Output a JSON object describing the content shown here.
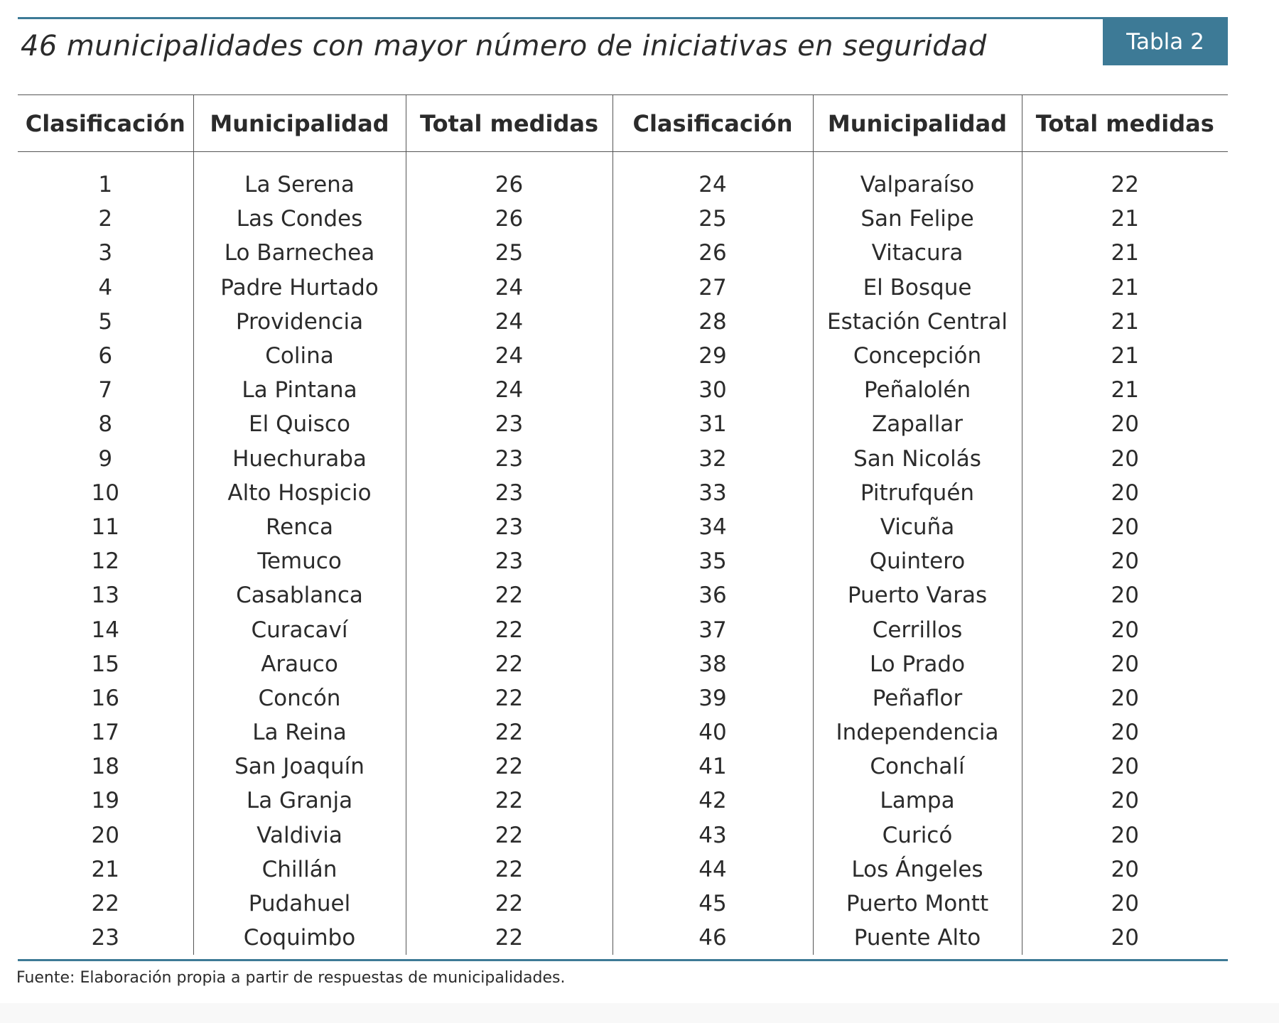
{
  "table": {
    "title": "46 municipalidades con mayor número de iniciativas en seguridad",
    "badge": "Tabla 2",
    "headers": [
      "Clasificación",
      "Municipalidad",
      "Total medidas",
      "Clasificación",
      "Municipalidad",
      "Total medidas"
    ],
    "rows": [
      [
        "1",
        "La Serena",
        "26",
        "24",
        "Valparaíso",
        "22"
      ],
      [
        "2",
        "Las Condes",
        "26",
        "25",
        "San Felipe",
        "21"
      ],
      [
        "3",
        "Lo Barnechea",
        "25",
        "26",
        "Vitacura",
        "21"
      ],
      [
        "4",
        "Padre Hurtado",
        "24",
        "27",
        "El Bosque",
        "21"
      ],
      [
        "5",
        "Providencia",
        "24",
        "28",
        "Estación Central",
        "21"
      ],
      [
        "6",
        "Colina",
        "24",
        "29",
        "Concepción",
        "21"
      ],
      [
        "7",
        "La Pintana",
        "24",
        "30",
        "Peñalolén",
        "21"
      ],
      [
        "8",
        "El Quisco",
        "23",
        "31",
        "Zapallar",
        "20"
      ],
      [
        "9",
        "Huechuraba",
        "23",
        "32",
        "San Nicolás",
        "20"
      ],
      [
        "10",
        "Alto Hospicio",
        "23",
        "33",
        "Pitrufquén",
        "20"
      ],
      [
        "11",
        "Renca",
        "23",
        "34",
        "Vicuña",
        "20"
      ],
      [
        "12",
        "Temuco",
        "23",
        "35",
        "Quintero",
        "20"
      ],
      [
        "13",
        "Casablanca",
        "22",
        "36",
        "Puerto Varas",
        "20"
      ],
      [
        "14",
        "Curacaví",
        "22",
        "37",
        "Cerrillos",
        "20"
      ],
      [
        "15",
        "Arauco",
        "22",
        "38",
        "Lo Prado",
        "20"
      ],
      [
        "16",
        "Concón",
        "22",
        "39",
        "Peñaflor",
        "20"
      ],
      [
        "17",
        "La Reina",
        "22",
        "40",
        "Independencia",
        "20"
      ],
      [
        "18",
        "San Joaquín",
        "22",
        "41",
        "Conchalí",
        "20"
      ],
      [
        "19",
        "La Granja",
        "22",
        "42",
        "Lampa",
        "20"
      ],
      [
        "20",
        "Valdivia",
        "22",
        "43",
        "Curicó",
        "20"
      ],
      [
        "21",
        "Chillán",
        "22",
        "44",
        "Los Ángeles",
        "20"
      ],
      [
        "22",
        "Pudahuel",
        "22",
        "45",
        "Puerto Montt",
        "20"
      ],
      [
        "23",
        "Coquimbo",
        "22",
        "46",
        "Puente Alto",
        "20"
      ]
    ],
    "source": "Fuente: Elaboración propia a partir de respuestas de municipalidades.",
    "colors": {
      "accent": "#3d7a96",
      "text": "#2b2b2b",
      "rule": "#555555"
    }
  }
}
